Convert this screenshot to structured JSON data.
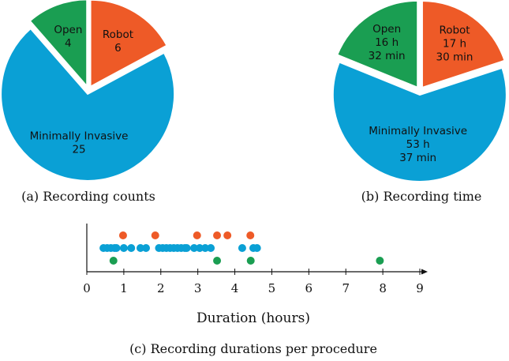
{
  "colors": {
    "open": "#1a9e52",
    "robot": "#ee5a27",
    "minimally_invasive": "#0aa0d5"
  },
  "chart_data": [
    {
      "type": "pie",
      "title": "(a) Recording counts",
      "slices": [
        {
          "key": "robot",
          "name": "Robot",
          "value": 6,
          "label_lines": [
            "Robot",
            "6"
          ]
        },
        {
          "key": "minimally_invasive",
          "name": "Minimally Invasive",
          "value": 25,
          "label_lines": [
            "Minimally Invasive",
            "25"
          ]
        },
        {
          "key": "open",
          "name": "Open",
          "value": 4,
          "label_lines": [
            "Open",
            "4"
          ]
        }
      ]
    },
    {
      "type": "pie",
      "title": "(b) Recording time",
      "slices": [
        {
          "key": "robot",
          "name": "Robot",
          "value": 17.5,
          "label_lines": [
            "Robot",
            "17 h",
            "30 min"
          ]
        },
        {
          "key": "minimally_invasive",
          "name": "Minimally Invasive",
          "value": 53.62,
          "label_lines": [
            "Minimally Invasive",
            "53 h",
            "37 min"
          ]
        },
        {
          "key": "open",
          "name": "Open",
          "value": 16.53,
          "label_lines": [
            "Open",
            "16 h",
            "32 min"
          ]
        }
      ]
    },
    {
      "type": "scatter",
      "title": "(c) Recording durations per procedure",
      "xlabel": "Duration (hours)",
      "xlim": [
        0,
        9
      ],
      "xticks": [
        0,
        1,
        2,
        3,
        4,
        5,
        6,
        7,
        8,
        9
      ],
      "series": [
        {
          "key": "robot",
          "name": "Robot",
          "x": [
            0.98,
            1.85,
            2.98,
            3.52,
            3.8,
            4.42
          ]
        },
        {
          "key": "minimally_invasive",
          "name": "Minimally Invasive",
          "x": [
            0.45,
            0.55,
            0.65,
            0.75,
            1.2,
            1.45,
            1.6,
            1.95,
            2.05,
            2.15,
            2.25,
            2.35,
            2.45,
            2.55,
            2.65,
            3.05,
            3.2,
            3.35,
            4.2,
            4.5,
            4.6,
            0.8,
            1.0,
            2.7,
            2.9
          ]
        },
        {
          "key": "open",
          "name": "Open",
          "x": [
            0.72,
            3.52,
            4.43,
            7.92
          ]
        }
      ]
    }
  ]
}
